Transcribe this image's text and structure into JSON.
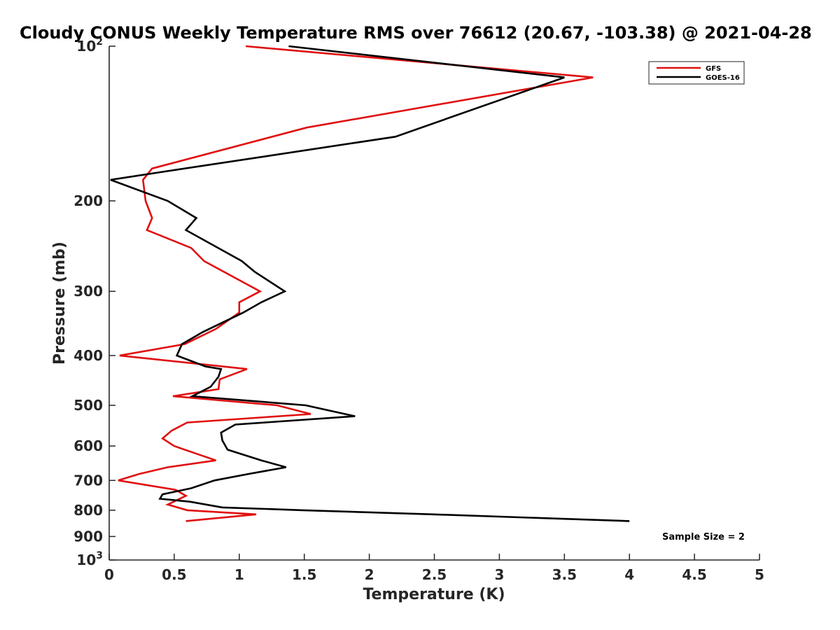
{
  "chart_data": {
    "type": "line",
    "title": "Cloudy CONUS Weekly Temperature RMS over 76612 (20.67, -103.38) @ 2021-04-28",
    "xlabel": "Temperature (K)",
    "ylabel": "Pressure (mb)",
    "xlim": [
      0,
      5
    ],
    "ylim": [
      100,
      1000
    ],
    "yscale": "log",
    "y_reversed": true,
    "xticks": [
      0,
      0.5,
      1,
      1.5,
      2,
      2.5,
      3,
      3.5,
      4,
      4.5,
      5
    ],
    "xtick_labels": [
      "0",
      "0.5",
      "1",
      "1.5",
      "2",
      "2.5",
      "3",
      "3.5",
      "4",
      "4.5",
      "5"
    ],
    "yticks": [
      100,
      200,
      300,
      400,
      500,
      600,
      700,
      800,
      900,
      1000
    ],
    "ytick_labels": [
      {
        "base": "10",
        "exp": "2"
      },
      {
        "base": "200",
        "exp": ""
      },
      {
        "base": "300",
        "exp": ""
      },
      {
        "base": "400",
        "exp": ""
      },
      {
        "base": "500",
        "exp": ""
      },
      {
        "base": "600",
        "exp": ""
      },
      {
        "base": "700",
        "exp": ""
      },
      {
        "base": "800",
        "exp": ""
      },
      {
        "base": "900",
        "exp": ""
      },
      {
        "base": "10",
        "exp": "3"
      }
    ],
    "legend_position": "top-right",
    "annotation": "Sample Size = 2",
    "series": [
      {
        "name": "GFS",
        "color": "#e01010",
        "x": [
          1.05,
          3.72,
          1.52,
          0.33,
          0.26,
          0.28,
          0.33,
          0.29,
          0.63,
          0.73,
          1.16,
          1.0,
          1.0,
          0.82,
          0.58,
          0.08,
          1.06,
          0.85,
          0.84,
          0.49,
          1.29,
          1.55,
          0.6,
          0.48,
          0.41,
          0.5,
          0.82,
          0.45,
          0.23,
          0.07,
          0.51,
          0.59,
          0.45,
          0.6,
          1.13,
          0.59
        ],
        "y": [
          100,
          115,
          144,
          173,
          182,
          200,
          216,
          228,
          247,
          262,
          300,
          315,
          330,
          355,
          380,
          400,
          425,
          445,
          465,
          480,
          500,
          520,
          540,
          560,
          580,
          600,
          640,
          660,
          680,
          700,
          730,
          750,
          780,
          800,
          815,
          840
        ]
      },
      {
        "name": "GOES-16",
        "color": "#000000",
        "x": [
          1.38,
          3.5,
          2.2,
          0.45,
          0.01,
          0.45,
          0.67,
          0.59,
          1.02,
          1.12,
          1.35,
          1.17,
          1.03,
          0.72,
          0.56,
          0.52,
          0.74,
          0.86,
          0.84,
          0.78,
          0.64,
          1.51,
          1.89,
          0.97,
          0.86,
          0.87,
          0.91,
          1.17,
          1.36,
          1.07,
          0.81,
          0.63,
          0.41,
          0.39,
          0.62,
          0.87,
          1.49,
          2.49,
          4.0
        ],
        "y": [
          100,
          115,
          150,
          175,
          182,
          200,
          216,
          228,
          262,
          275,
          300,
          315,
          330,
          360,
          380,
          400,
          420,
          425,
          440,
          460,
          480,
          500,
          525,
          545,
          565,
          585,
          610,
          640,
          660,
          680,
          700,
          725,
          745,
          760,
          770,
          790,
          800,
          815,
          840
        ]
      }
    ]
  }
}
